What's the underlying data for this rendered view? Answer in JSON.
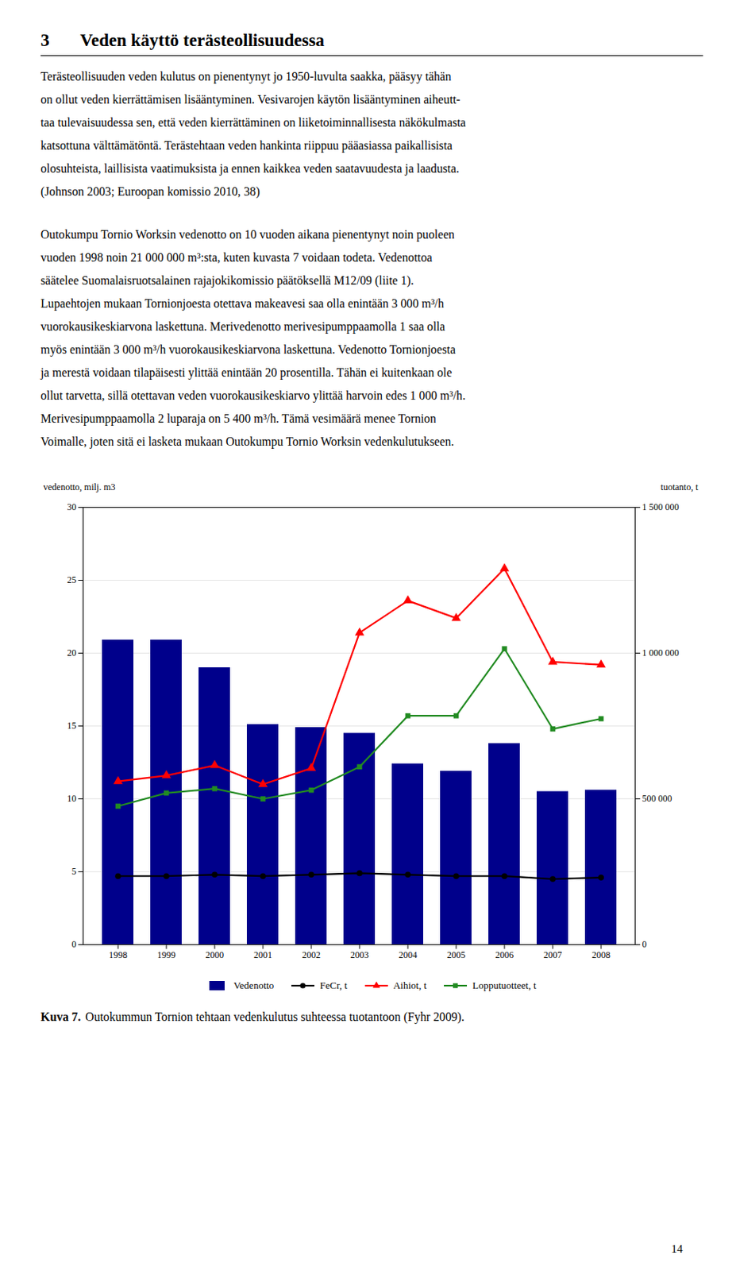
{
  "section_number": "3",
  "title": "Veden käyttö terästeollisuudessa",
  "paragraphs": [
    [
      "Terästeollisuuden veden kulutus on pienentynyt jo 1950-luvulta saakka, pääsyy tähän",
      "on ollut veden kierrättämisen lisääntyminen. Vesivarojen käytön lisääntyminen aiheutt-",
      "taa tulevaisuudessa sen, että veden kierrättäminen on liiketoiminnallisesta näkökulmasta",
      "katsottuna välttämätöntä. Terästehtaan veden hankinta riippuu pääasiassa paikallisista",
      "olosuhteista, laillisista vaatimuksista  ja ennen kaikkea veden saatavuudesta ja laadusta.",
      "(Johnson 2003; Euroopan komissio 2010, 38)"
    ],
    [
      "Outokumpu Tornio Worksin vedenotto on 10 vuoden aikana pienentynyt noin puoleen",
      "vuoden 1998 noin 21 000 000 m³:sta, kuten kuvasta 7 voidaan todeta. Vedenottoa",
      "säätelee  Suomalaisruotsalainen  rajajokikomissio  päätöksellä  M12/09  (liite  1).",
      "Lupaehtojen mukaan Tornionjoesta otettava makeavesi saa olla enintään 3 000 m³/h",
      "vuorokausikeskiarvona laskettuna. Merivedenotto merivesipumppaamolla 1 saa olla",
      "myös enintään 3 000 m³/h vuorokausikeskiarvona laskettuna. Vedenotto Tornionjoesta",
      "ja merestä voidaan tilapäisesti ylittää enintään 20 prosentilla. Tähän ei kuitenkaan ole",
      "ollut tarvetta, sillä otettavan veden vuorokausikeskiarvo ylittää harvoin edes 1 000 m³/h.",
      "Merivesipumppaamolla 2 luparaja on 5 400 m³/h. Tämä vesimäärä menee Tornion",
      "Voimalle, joten sitä ei lasketa mukaan Outokumpu Tornio Worksin vedenkulutukseen."
    ]
  ],
  "chart_data": {
    "type": "bar",
    "categories": [
      "1998",
      "1999",
      "2000",
      "2001",
      "2002",
      "2003",
      "2004",
      "2005",
      "2006",
      "2007",
      "2008"
    ],
    "series": [
      {
        "name": "Vedenotto",
        "type": "bar",
        "color": "#00008B",
        "values": [
          20.9,
          20.9,
          19.0,
          15.1,
          14.9,
          14.5,
          12.4,
          11.9,
          13.8,
          10.5,
          10.6
        ]
      },
      {
        "name": "FeCr, t",
        "type": "line",
        "axis": "y2",
        "color": "#000000",
        "marker": "circle",
        "values": [
          235000,
          235000,
          240000,
          235000,
          240000,
          245000,
          240000,
          235000,
          235000,
          225000,
          230000
        ]
      },
      {
        "name": "Aihiot, t",
        "type": "line",
        "axis": "y2",
        "color": "#FF0000",
        "marker": "triangle",
        "values": [
          560000,
          580000,
          615000,
          550000,
          605000,
          1070000,
          1180000,
          1120000,
          1290000,
          970000,
          960000
        ]
      },
      {
        "name": "Lopputuotteet, t",
        "type": "line",
        "axis": "y2",
        "color": "#228B22",
        "marker": "square",
        "values": [
          475000,
          520000,
          535000,
          500000,
          530000,
          610000,
          785000,
          785000,
          1015000,
          740000,
          775000
        ]
      }
    ],
    "ylabel": "vedenotto, milj. m3",
    "y2label": "tuotanto, t",
    "ylim": [
      0,
      30
    ],
    "yticks": [
      0,
      5,
      10,
      15,
      20,
      25,
      30
    ],
    "y2lim": [
      0,
      1500000
    ],
    "y2ticks": [
      0,
      {
        "value": 500000,
        "label": "500 000"
      },
      {
        "value": 1000000,
        "label": "1 000 000"
      },
      {
        "value": 1500000,
        "label": "1 500 000"
      }
    ],
    "grid": true,
    "legend": "bottom"
  },
  "caption_label": "Kuva 7.",
  "caption": "Outokummun Tornion tehtaan vedenkulutus suhteessa tuotantoon (Fyhr 2009).",
  "page_number": "14"
}
